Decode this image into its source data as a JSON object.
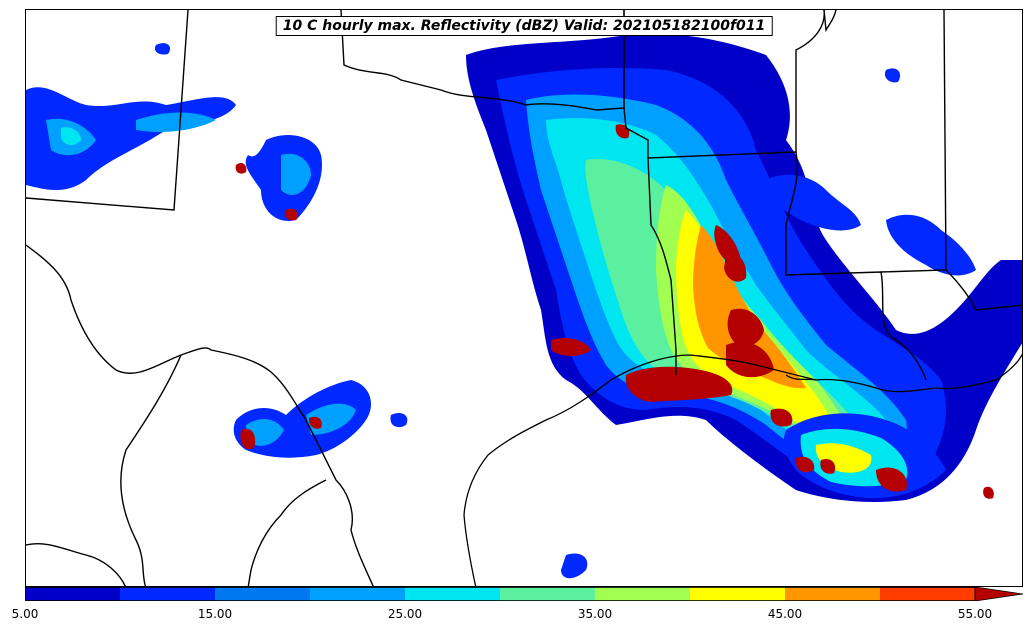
{
  "title": "10 C hourly max. Reflectivity (dBZ) Valid: 202105182100f011",
  "colorbar": {
    "min": 5,
    "max": 55,
    "colors": [
      "#0000c8",
      "#0028ff",
      "#0078f0",
      "#00a0ff",
      "#00e6f0",
      "#5af0a0",
      "#a0ff50",
      "#ffff00",
      "#ff9600",
      "#ff3c00",
      "#b40000"
    ],
    "extend_color": "#8c0000",
    "tick_labels": [
      "5.00",
      "15.00",
      "25.00",
      "35.00",
      "45.00",
      "55.00"
    ],
    "tick_values": [
      5,
      15,
      25,
      35,
      45,
      55
    ]
  },
  "map": {
    "background": "#ffffff",
    "boundary_color": "#000000",
    "features": [
      "state-borders",
      "international-border",
      "coastline",
      "reflectivity-shading"
    ]
  }
}
